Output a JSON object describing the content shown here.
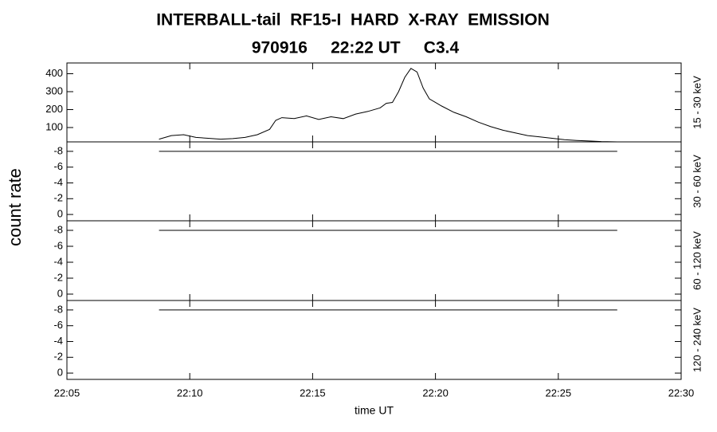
{
  "chart_data": [
    {
      "type": "line",
      "title": "INTERBALL-tail  RF15-I  HARD  X-RAY  EMISSION",
      "subtitle": "970916     22:22 UT     C3.4",
      "ylabel": "count rate",
      "right_label": "15 - 30 keV",
      "x": [
        1328.75,
        1329.25,
        1329.75,
        1330.25,
        1330.75,
        1331.25,
        1331.75,
        1332.25,
        1332.75,
        1333.25,
        1333.5,
        1333.75,
        1334.25,
        1334.75,
        1335.25,
        1335.75,
        1336.25,
        1336.75,
        1337.25,
        1337.75,
        1338.0,
        1338.25,
        1338.5,
        1338.75,
        1339.0,
        1339.25,
        1339.5,
        1339.75,
        1340.25,
        1340.75,
        1341.25,
        1341.75,
        1342.25,
        1342.75,
        1343.25,
        1343.75,
        1344.25,
        1344.75,
        1345.25,
        1345.75,
        1346.25,
        1346.75,
        1347.4
      ],
      "series": [
        {
          "color": "#000000",
          "values": [
            35,
            55,
            60,
            45,
            40,
            35,
            38,
            45,
            60,
            90,
            140,
            155,
            150,
            165,
            145,
            160,
            150,
            175,
            190,
            210,
            235,
            240,
            300,
            380,
            430,
            410,
            320,
            260,
            220,
            185,
            160,
            130,
            105,
            85,
            70,
            55,
            48,
            40,
            32,
            28,
            25,
            22,
            20
          ]
        }
      ],
      "xlim": [
        1325,
        1350
      ],
      "xticks": [
        {
          "value": 1325,
          "label": "22:05"
        },
        {
          "value": 1330,
          "label": "22:10"
        },
        {
          "value": 1335,
          "label": "22:15"
        },
        {
          "value": 1340,
          "label": "22:20"
        },
        {
          "value": 1345,
          "label": "22:25"
        },
        {
          "value": 1350,
          "label": "22:30"
        }
      ],
      "ylim": [
        20,
        460
      ],
      "yticks": [
        100,
        200,
        300,
        400
      ]
    },
    {
      "type": "line",
      "right_label": "30 - 60 keV",
      "x": [
        1328.75,
        1347.4
      ],
      "series": [
        {
          "color": "#000000",
          "values": [
            -8,
            -8
          ]
        }
      ],
      "xlim": [
        1325,
        1350
      ],
      "xticks": [
        {
          "value": 1325,
          "label": "22:05"
        },
        {
          "value": 1330,
          "label": "22:10"
        },
        {
          "value": 1335,
          "label": "22:15"
        },
        {
          "value": 1340,
          "label": "22:20"
        },
        {
          "value": 1345,
          "label": "22:25"
        },
        {
          "value": 1350,
          "label": "22:30"
        }
      ],
      "ylim": [
        0.8,
        -9.2
      ],
      "yticks": [
        -8,
        -6,
        -4,
        -2,
        0
      ]
    },
    {
      "type": "line",
      "right_label": "60 - 120 keV",
      "x": [
        1328.75,
        1347.4
      ],
      "series": [
        {
          "color": "#000000",
          "values": [
            -8,
            -8
          ]
        }
      ],
      "xlim": [
        1325,
        1350
      ],
      "xticks": [
        {
          "value": 1325,
          "label": "22:05"
        },
        {
          "value": 1330,
          "label": "22:10"
        },
        {
          "value": 1335,
          "label": "22:15"
        },
        {
          "value": 1340,
          "label": "22:20"
        },
        {
          "value": 1345,
          "label": "22:25"
        },
        {
          "value": 1350,
          "label": "22:30"
        }
      ],
      "ylim": [
        0.8,
        -9.2
      ],
      "yticks": [
        -8,
        -6,
        -4,
        -2,
        0
      ]
    },
    {
      "type": "line",
      "right_label": "120 - 240 keV",
      "xlabel": "time UT",
      "x": [
        1328.75,
        1347.4
      ],
      "series": [
        {
          "color": "#000000",
          "values": [
            -8,
            -8
          ]
        }
      ],
      "xlim": [
        1325,
        1350
      ],
      "xticks": [
        {
          "value": 1325,
          "label": "22:05"
        },
        {
          "value": 1330,
          "label": "22:10"
        },
        {
          "value": 1335,
          "label": "22:15"
        },
        {
          "value": 1340,
          "label": "22:20"
        },
        {
          "value": 1345,
          "label": "22:25"
        },
        {
          "value": 1350,
          "label": "22:30"
        }
      ],
      "ylim": [
        0.8,
        -9.2
      ],
      "yticks": [
        -8,
        -6,
        -4,
        -2,
        0
      ]
    }
  ]
}
